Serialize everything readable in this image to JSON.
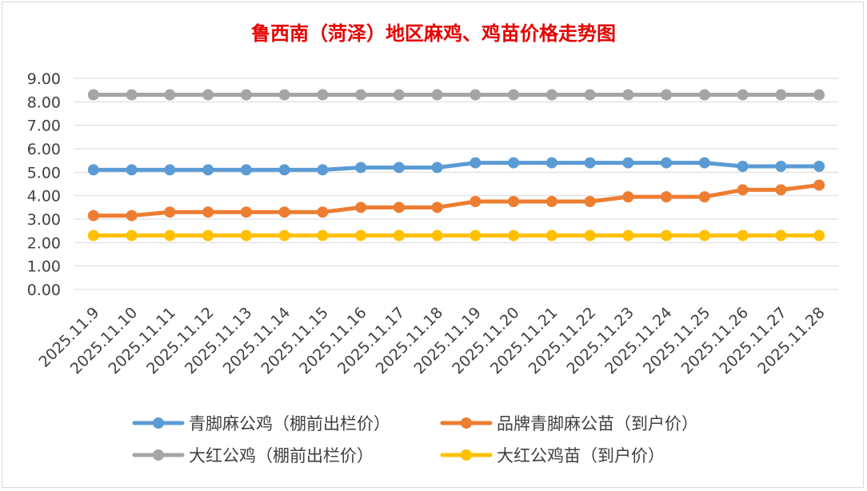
{
  "chart_data": {
    "type": "line",
    "title": "鲁西南（菏泽）地区麻鸡、鸡苗价格走势图",
    "xlabel": "",
    "ylabel": "",
    "ylim": [
      0,
      9
    ],
    "yticks": [
      "0.00",
      "1.00",
      "2.00",
      "3.00",
      "4.00",
      "5.00",
      "6.00",
      "7.00",
      "8.00",
      "9.00"
    ],
    "grid": true,
    "legend_position": "bottom",
    "categories": [
      "2025.11.9",
      "2025.11.10",
      "2025.11.11",
      "2025.11.12",
      "2025.11.13",
      "2025.11.14",
      "2025.11.15",
      "2025.11.16",
      "2025.11.17",
      "2025.11.18",
      "2025.11.19",
      "2025.11.20",
      "2025.11.21",
      "2025.11.22",
      "2025.11.23",
      "2025.11.24",
      "2025.11.25",
      "2025.11.26",
      "2025.11.27",
      "2025.11.28"
    ],
    "series": [
      {
        "name": "青脚麻公鸡（棚前出栏价）",
        "color": "#5b9bd5",
        "values": [
          5.1,
          5.1,
          5.1,
          5.1,
          5.1,
          5.1,
          5.1,
          5.2,
          5.2,
          5.2,
          5.4,
          5.4,
          5.4,
          5.4,
          5.4,
          5.4,
          5.4,
          5.25,
          5.25,
          5.25
        ]
      },
      {
        "name": "品牌青脚麻公苗（到户价）",
        "color": "#ed7d31",
        "values": [
          3.15,
          3.15,
          3.3,
          3.3,
          3.3,
          3.3,
          3.3,
          3.5,
          3.5,
          3.5,
          3.75,
          3.75,
          3.75,
          3.75,
          3.95,
          3.95,
          3.95,
          4.25,
          4.25,
          4.45
        ]
      },
      {
        "name": "大红公鸡（棚前出栏价）",
        "color": "#a5a5a5",
        "values": [
          8.3,
          8.3,
          8.3,
          8.3,
          8.3,
          8.3,
          8.3,
          8.3,
          8.3,
          8.3,
          8.3,
          8.3,
          8.3,
          8.3,
          8.3,
          8.3,
          8.3,
          8.3,
          8.3,
          8.3
        ]
      },
      {
        "name": "大红公鸡苗（到户价）",
        "color": "#ffc000",
        "values": [
          2.3,
          2.3,
          2.3,
          2.3,
          2.3,
          2.3,
          2.3,
          2.3,
          2.3,
          2.3,
          2.3,
          2.3,
          2.3,
          2.3,
          2.3,
          2.3,
          2.3,
          2.3,
          2.3,
          2.3
        ]
      }
    ]
  }
}
